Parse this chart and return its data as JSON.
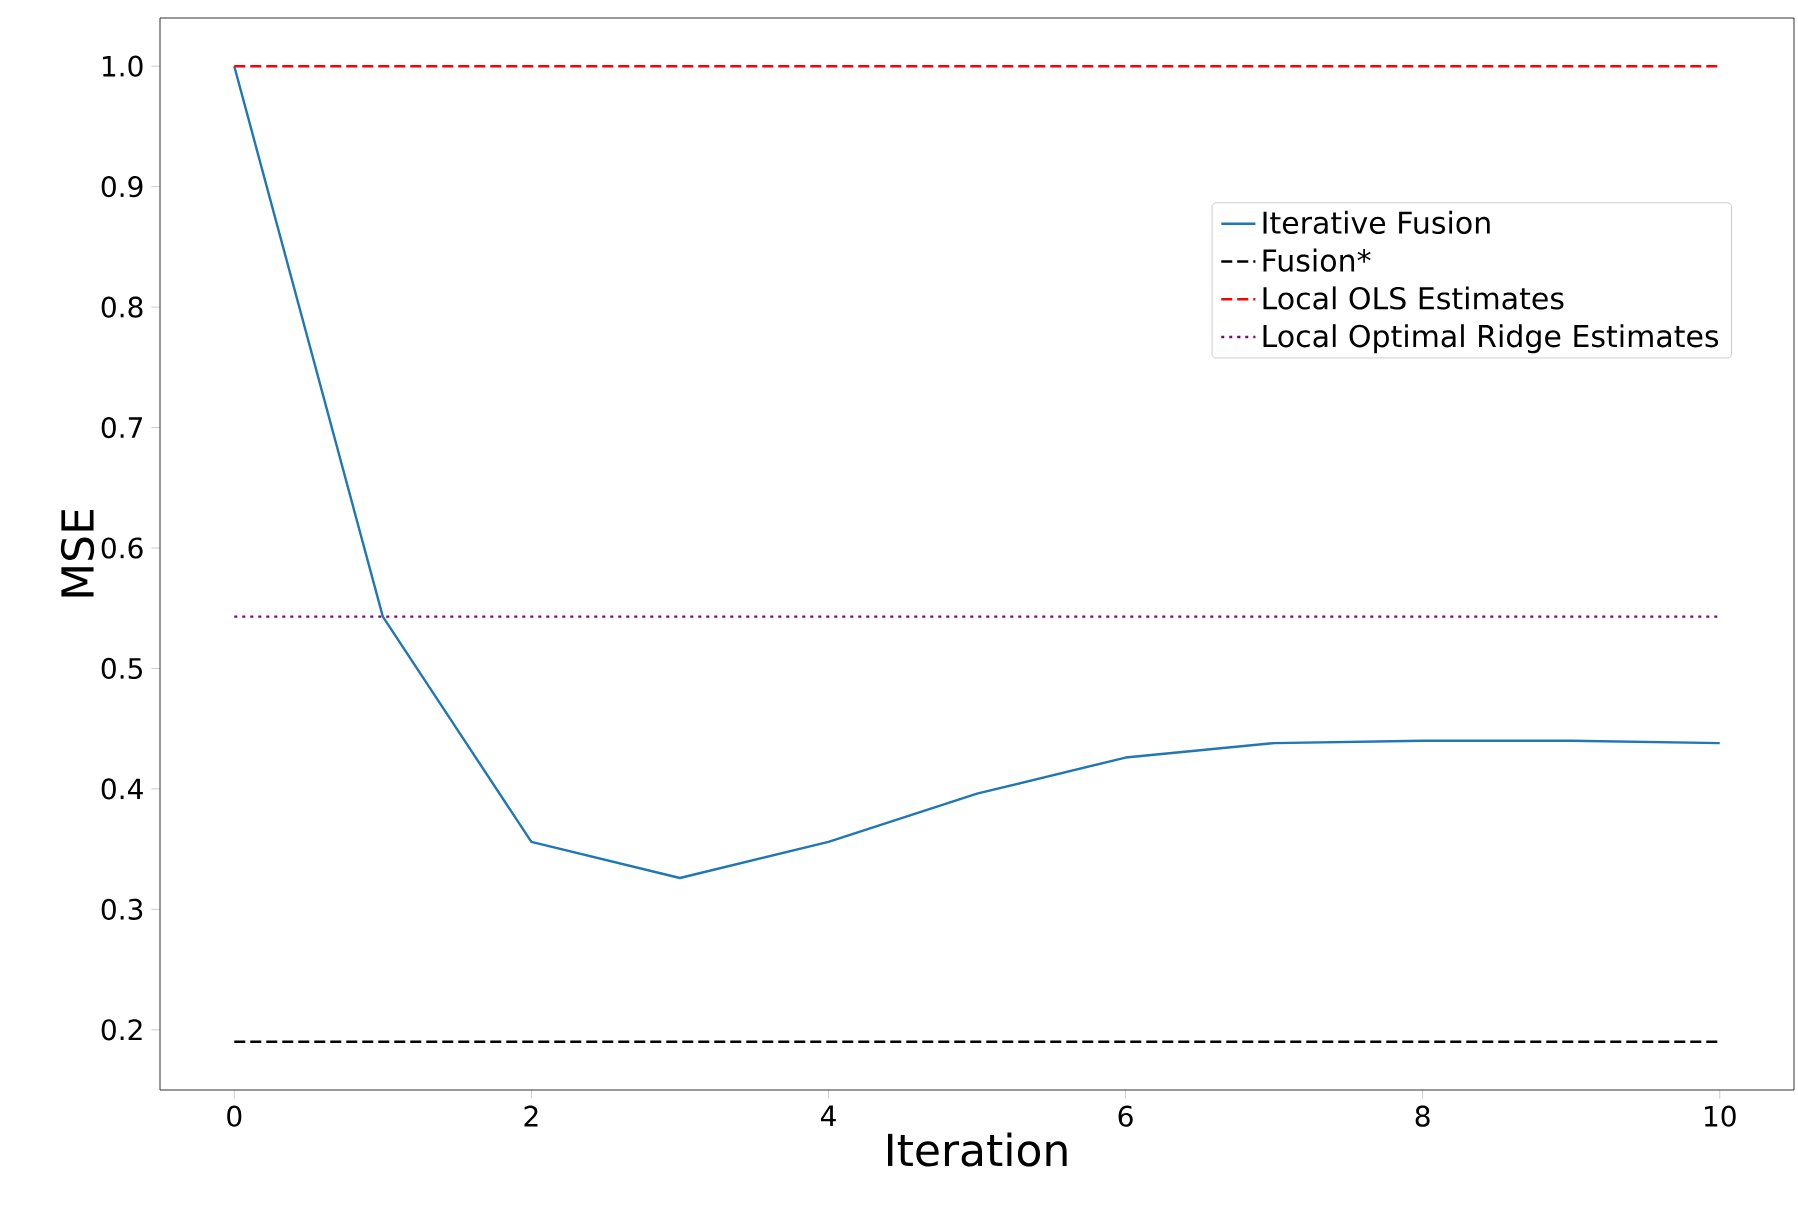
{
  "chart_data": {
    "type": "line",
    "xlabel": "Iteration",
    "ylabel": "MSE",
    "series": [
      {
        "name": "Iterative Fusion",
        "color": "#1f77b4",
        "line_style": "solid",
        "x": [
          0,
          1,
          2,
          3,
          4,
          5,
          6,
          7,
          8,
          9,
          10
        ],
        "values": [
          1.0,
          0.543,
          0.356,
          0.326,
          0.356,
          0.396,
          0.426,
          0.438,
          0.44,
          0.44,
          0.438
        ]
      },
      {
        "name": "Fusion*",
        "color": "#000000",
        "line_style": "dashed",
        "x": [
          0,
          10
        ],
        "values": [
          0.19,
          0.19
        ]
      },
      {
        "name": "Local OLS Estimates",
        "color": "#ff0000",
        "line_style": "dashed",
        "x": [
          0,
          10
        ],
        "values": [
          1.0,
          1.0
        ]
      },
      {
        "name": "Local Optimal Ridge Estimates",
        "color": "#800080",
        "line_style": "dotted",
        "x": [
          0,
          10
        ],
        "values": [
          0.543,
          0.543
        ]
      }
    ],
    "xlim": [
      -0.5,
      10.5
    ],
    "ylim": [
      0.15,
      1.04
    ],
    "xticks": [
      0,
      2,
      4,
      6,
      8,
      10
    ],
    "yticks": [
      {
        "value": 0.2,
        "label": "0.2"
      },
      {
        "value": 0.3,
        "label": "0.3"
      },
      {
        "value": 0.4,
        "label": "0.4"
      },
      {
        "value": 0.5,
        "label": "0.5"
      },
      {
        "value": 0.6,
        "label": "0.6"
      },
      {
        "value": 0.7,
        "label": "0.7"
      },
      {
        "value": 0.8,
        "label": "0.8"
      },
      {
        "value": 0.9,
        "label": "0.9"
      },
      {
        "value": 1.0,
        "label": "1.0"
      }
    ],
    "legend": "top right",
    "grid": false,
    "marker": "none"
  }
}
